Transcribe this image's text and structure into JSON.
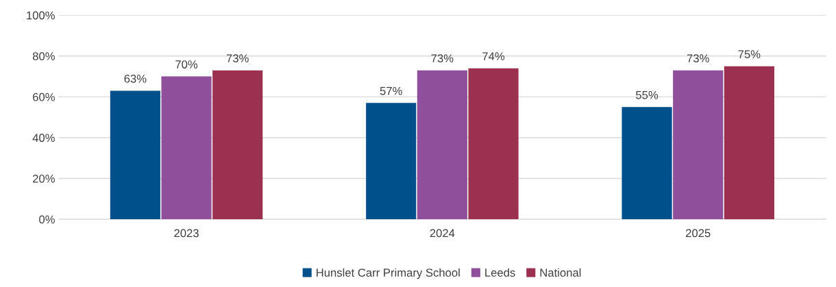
{
  "chart_data": {
    "type": "bar",
    "categories": [
      "2023",
      "2024",
      "2025"
    ],
    "series": [
      {
        "name": "Hunslet Carr Primary School",
        "color": "#00508c",
        "values": [
          63,
          57,
          55
        ],
        "value_labels": [
          "63%",
          "57%",
          "55%"
        ]
      },
      {
        "name": "Leeds",
        "color": "#8f4f9a",
        "values": [
          70,
          73,
          73
        ],
        "value_labels": [
          "70%",
          "73%",
          "73%"
        ]
      },
      {
        "name": "National",
        "color": "#9c3050",
        "values": [
          73,
          74,
          75
        ],
        "value_labels": [
          "73%",
          "74%",
          "75%"
        ]
      }
    ],
    "ylim": [
      0,
      100
    ],
    "yticks": [
      {
        "value": 0,
        "label": "0%"
      },
      {
        "value": 20,
        "label": "20%"
      },
      {
        "value": 40,
        "label": "40%"
      },
      {
        "value": 60,
        "label": "60%"
      },
      {
        "value": 80,
        "label": "80%"
      },
      {
        "value": 100,
        "label": "100%"
      }
    ],
    "grid": "y",
    "legend": "bottom"
  }
}
